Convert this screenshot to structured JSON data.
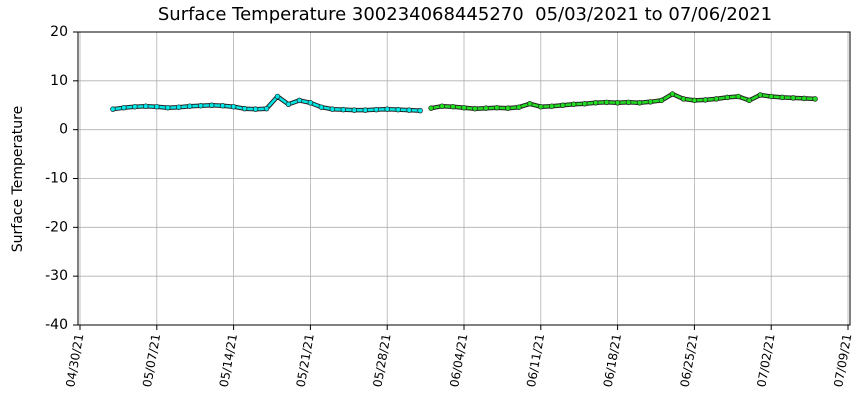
{
  "chart_data": {
    "type": "scatter",
    "title": "Surface Temperature 300234068445270  05/03/2021 to 07/06/2021",
    "ylabel": "Surface Temperature",
    "ylim": [
      -40,
      20
    ],
    "yticks": [
      -40,
      -30,
      -20,
      -10,
      0,
      10,
      20
    ],
    "xlim": [
      "2021-04-30",
      "2021-07-09"
    ],
    "xticks": [
      {
        "value": "2021-04-30",
        "label": "04/30/21"
      },
      {
        "value": "2021-05-07",
        "label": "05/07/21"
      },
      {
        "value": "2021-05-14",
        "label": "05/14/21"
      },
      {
        "value": "2021-05-21",
        "label": "05/21/21"
      },
      {
        "value": "2021-05-28",
        "label": "05/28/21"
      },
      {
        "value": "2021-06-04",
        "label": "06/04/21"
      },
      {
        "value": "2021-06-11",
        "label": "06/11/21"
      },
      {
        "value": "2021-06-18",
        "label": "06/18/21"
      },
      {
        "value": "2021-06-25",
        "label": "06/25/21"
      },
      {
        "value": "2021-07-02",
        "label": "07/02/21"
      },
      {
        "value": "2021-07-09",
        "label": "07/09/21"
      }
    ],
    "grid": true,
    "series": [
      {
        "color": "#00e5e5",
        "x": [
          "2021-05-03",
          "2021-05-04",
          "2021-05-05",
          "2021-05-06",
          "2021-05-07",
          "2021-05-08",
          "2021-05-09",
          "2021-05-10",
          "2021-05-11",
          "2021-05-12",
          "2021-05-13",
          "2021-05-14",
          "2021-05-15",
          "2021-05-16",
          "2021-05-17",
          "2021-05-18",
          "2021-05-19",
          "2021-05-20",
          "2021-05-21",
          "2021-05-22",
          "2021-05-23",
          "2021-05-24",
          "2021-05-25",
          "2021-05-26",
          "2021-05-27",
          "2021-05-28",
          "2021-05-29",
          "2021-05-30",
          "2021-05-31"
        ],
        "values": [
          4.2,
          4.5,
          4.7,
          4.8,
          4.7,
          4.5,
          4.6,
          4.8,
          4.9,
          5.0,
          4.9,
          4.7,
          4.3,
          4.2,
          4.3,
          6.8,
          5.2,
          6.0,
          5.5,
          4.6,
          4.2,
          4.1,
          4.0,
          4.0,
          4.1,
          4.2,
          4.1,
          4.0,
          3.9
        ]
      },
      {
        "color": "#22dd22",
        "x": [
          "2021-06-01",
          "2021-06-02",
          "2021-06-03",
          "2021-06-04",
          "2021-06-05",
          "2021-06-06",
          "2021-06-07",
          "2021-06-08",
          "2021-06-09",
          "2021-06-10",
          "2021-06-11",
          "2021-06-12",
          "2021-06-13",
          "2021-06-14",
          "2021-06-15",
          "2021-06-16",
          "2021-06-17",
          "2021-06-18",
          "2021-06-19",
          "2021-06-20",
          "2021-06-21",
          "2021-06-22",
          "2021-06-23",
          "2021-06-24",
          "2021-06-25",
          "2021-06-26",
          "2021-06-27",
          "2021-06-28",
          "2021-06-29",
          "2021-06-30",
          "2021-07-01",
          "2021-07-02",
          "2021-07-03",
          "2021-07-04",
          "2021-07-05",
          "2021-07-06"
        ],
        "values": [
          4.4,
          4.8,
          4.7,
          4.5,
          4.3,
          4.4,
          4.5,
          4.4,
          4.6,
          5.3,
          4.7,
          4.8,
          5.0,
          5.2,
          5.3,
          5.5,
          5.6,
          5.5,
          5.6,
          5.5,
          5.7,
          6.0,
          7.3,
          6.3,
          6.0,
          6.1,
          6.3,
          6.6,
          6.8,
          6.0,
          7.1,
          6.8,
          6.6,
          6.5,
          6.4,
          6.3
        ]
      }
    ]
  }
}
